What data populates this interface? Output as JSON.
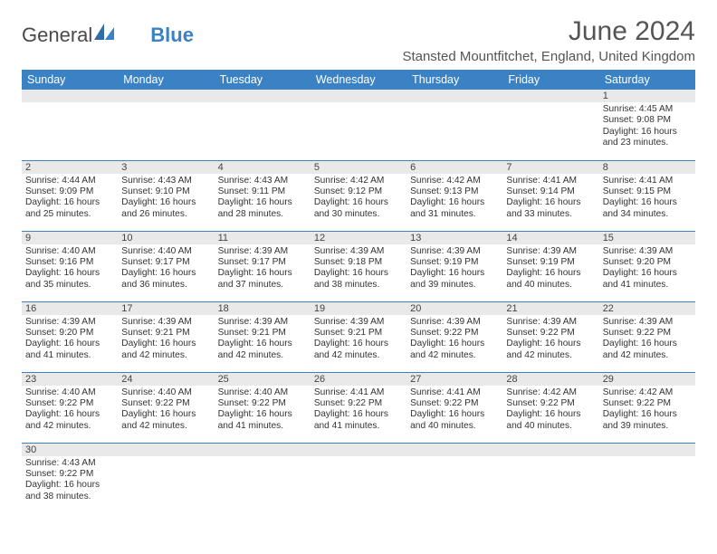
{
  "logo": {
    "part1": "General",
    "part2": "Blue"
  },
  "title": "June 2024",
  "location": "Stansted Mountfitchet, England, United Kingdom",
  "colors": {
    "header_bg": "#3b82c4",
    "header_text": "#ffffff",
    "daynum_bg": "#e9e9e9",
    "border": "#3b82c4",
    "body_text": "#333333",
    "title_text": "#555555"
  },
  "fonts": {
    "family": "Arial",
    "title_size": 30,
    "location_size": 15,
    "header_size": 12.5,
    "daynum_size": 11,
    "cell_size": 10.2
  },
  "weekdays": [
    "Sunday",
    "Monday",
    "Tuesday",
    "Wednesday",
    "Thursday",
    "Friday",
    "Saturday"
  ],
  "layout": {
    "leading_empty": 6,
    "days_in_month": 30
  },
  "days": {
    "1": {
      "sunrise": "4:45 AM",
      "sunset": "9:08 PM",
      "daylight": "16 hours and 23 minutes."
    },
    "2": {
      "sunrise": "4:44 AM",
      "sunset": "9:09 PM",
      "daylight": "16 hours and 25 minutes."
    },
    "3": {
      "sunrise": "4:43 AM",
      "sunset": "9:10 PM",
      "daylight": "16 hours and 26 minutes."
    },
    "4": {
      "sunrise": "4:43 AM",
      "sunset": "9:11 PM",
      "daylight": "16 hours and 28 minutes."
    },
    "5": {
      "sunrise": "4:42 AM",
      "sunset": "9:12 PM",
      "daylight": "16 hours and 30 minutes."
    },
    "6": {
      "sunrise": "4:42 AM",
      "sunset": "9:13 PM",
      "daylight": "16 hours and 31 minutes."
    },
    "7": {
      "sunrise": "4:41 AM",
      "sunset": "9:14 PM",
      "daylight": "16 hours and 33 minutes."
    },
    "8": {
      "sunrise": "4:41 AM",
      "sunset": "9:15 PM",
      "daylight": "16 hours and 34 minutes."
    },
    "9": {
      "sunrise": "4:40 AM",
      "sunset": "9:16 PM",
      "daylight": "16 hours and 35 minutes."
    },
    "10": {
      "sunrise": "4:40 AM",
      "sunset": "9:17 PM",
      "daylight": "16 hours and 36 minutes."
    },
    "11": {
      "sunrise": "4:39 AM",
      "sunset": "9:17 PM",
      "daylight": "16 hours and 37 minutes."
    },
    "12": {
      "sunrise": "4:39 AM",
      "sunset": "9:18 PM",
      "daylight": "16 hours and 38 minutes."
    },
    "13": {
      "sunrise": "4:39 AM",
      "sunset": "9:19 PM",
      "daylight": "16 hours and 39 minutes."
    },
    "14": {
      "sunrise": "4:39 AM",
      "sunset": "9:19 PM",
      "daylight": "16 hours and 40 minutes."
    },
    "15": {
      "sunrise": "4:39 AM",
      "sunset": "9:20 PM",
      "daylight": "16 hours and 41 minutes."
    },
    "16": {
      "sunrise": "4:39 AM",
      "sunset": "9:20 PM",
      "daylight": "16 hours and 41 minutes."
    },
    "17": {
      "sunrise": "4:39 AM",
      "sunset": "9:21 PM",
      "daylight": "16 hours and 42 minutes."
    },
    "18": {
      "sunrise": "4:39 AM",
      "sunset": "9:21 PM",
      "daylight": "16 hours and 42 minutes."
    },
    "19": {
      "sunrise": "4:39 AM",
      "sunset": "9:21 PM",
      "daylight": "16 hours and 42 minutes."
    },
    "20": {
      "sunrise": "4:39 AM",
      "sunset": "9:22 PM",
      "daylight": "16 hours and 42 minutes."
    },
    "21": {
      "sunrise": "4:39 AM",
      "sunset": "9:22 PM",
      "daylight": "16 hours and 42 minutes."
    },
    "22": {
      "sunrise": "4:39 AM",
      "sunset": "9:22 PM",
      "daylight": "16 hours and 42 minutes."
    },
    "23": {
      "sunrise": "4:40 AM",
      "sunset": "9:22 PM",
      "daylight": "16 hours and 42 minutes."
    },
    "24": {
      "sunrise": "4:40 AM",
      "sunset": "9:22 PM",
      "daylight": "16 hours and 42 minutes."
    },
    "25": {
      "sunrise": "4:40 AM",
      "sunset": "9:22 PM",
      "daylight": "16 hours and 41 minutes."
    },
    "26": {
      "sunrise": "4:41 AM",
      "sunset": "9:22 PM",
      "daylight": "16 hours and 41 minutes."
    },
    "27": {
      "sunrise": "4:41 AM",
      "sunset": "9:22 PM",
      "daylight": "16 hours and 40 minutes."
    },
    "28": {
      "sunrise": "4:42 AM",
      "sunset": "9:22 PM",
      "daylight": "16 hours and 40 minutes."
    },
    "29": {
      "sunrise": "4:42 AM",
      "sunset": "9:22 PM",
      "daylight": "16 hours and 39 minutes."
    },
    "30": {
      "sunrise": "4:43 AM",
      "sunset": "9:22 PM",
      "daylight": "16 hours and 38 minutes."
    }
  },
  "labels": {
    "sunrise": "Sunrise: ",
    "sunset": "Sunset: ",
    "daylight": "Daylight: "
  }
}
